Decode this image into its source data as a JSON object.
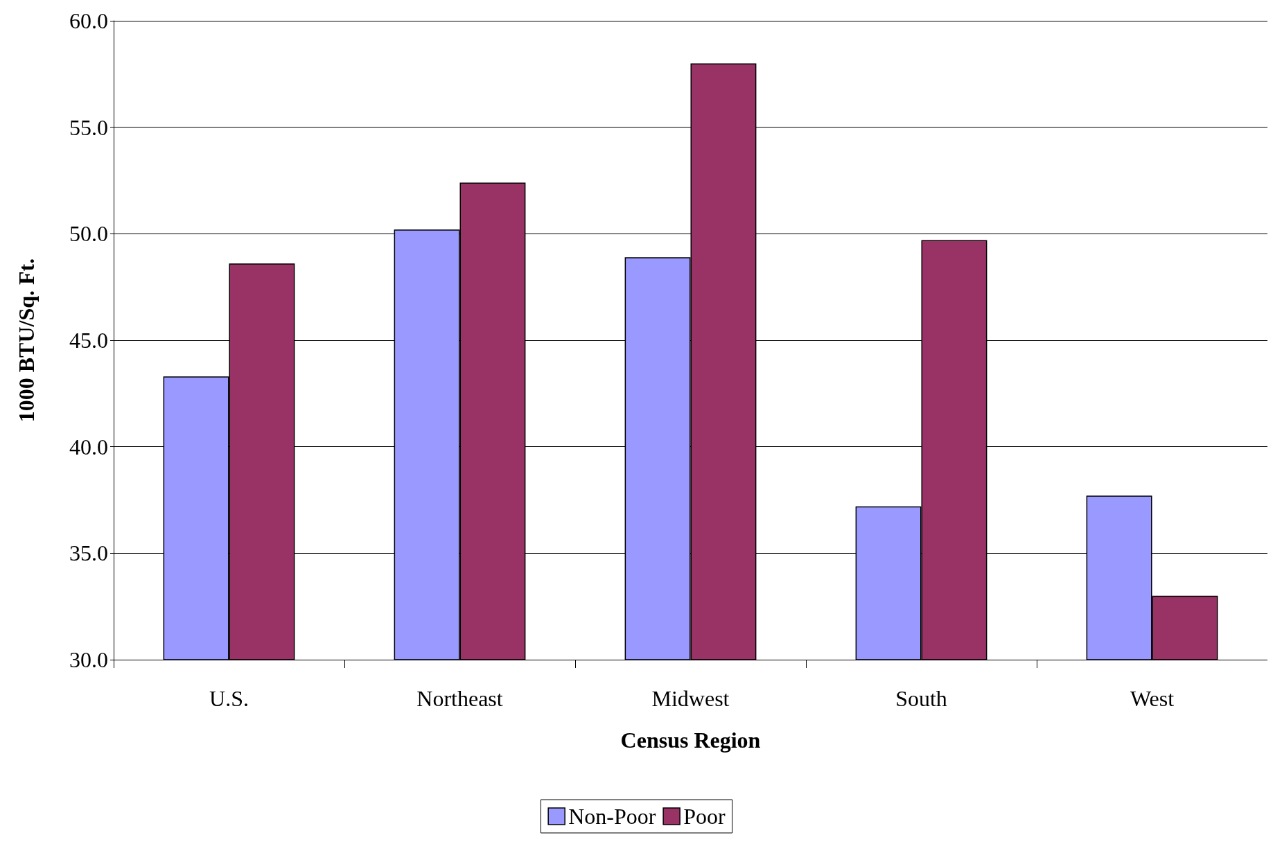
{
  "chart_data": {
    "type": "bar",
    "xlabel": "Census Region",
    "ylabel": "1000 BTU/Sq. Ft.",
    "categories": [
      "U.S.",
      "Northeast",
      "Midwest",
      "South",
      "West"
    ],
    "series": [
      {
        "name": "Non-Poor",
        "color": "#9999ff",
        "values": [
          43.3,
          50.2,
          48.9,
          37.2,
          37.7
        ]
      },
      {
        "name": "Poor",
        "color": "#993366",
        "values": [
          48.6,
          52.4,
          58.0,
          49.7,
          33.0
        ]
      }
    ],
    "ylim": [
      30,
      60
    ],
    "yticks": [
      {
        "value": 30,
        "label": "30.0"
      },
      {
        "value": 35,
        "label": "35.0"
      },
      {
        "value": 40,
        "label": "40.0"
      },
      {
        "value": 45,
        "label": "45.0"
      },
      {
        "value": 50,
        "label": "50.0"
      },
      {
        "value": 55,
        "label": "55.0"
      },
      {
        "value": 60,
        "label": "60.0"
      }
    ],
    "grid": "y",
    "legend": "bottom"
  }
}
